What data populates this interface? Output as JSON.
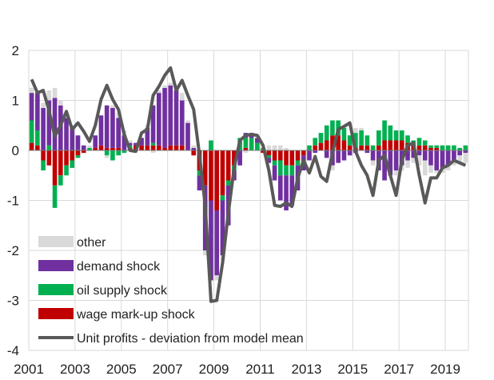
{
  "chart_data": {
    "type": "bar",
    "stacked": true,
    "ylim": [
      -4,
      2
    ],
    "yticks": [
      -4,
      -3,
      -2,
      -1,
      0,
      1,
      2
    ],
    "xticks": [
      "2001",
      "2003",
      "2005",
      "2007",
      "2009",
      "2011",
      "2013",
      "2015",
      "2017",
      "2019"
    ],
    "x_start_year": 2001,
    "quarters": 76,
    "grid": true,
    "legend_position": "bottom-left",
    "series": [
      {
        "name": "other",
        "kind": "bar",
        "color": "#d9d9d9",
        "values": [
          0.1,
          0.05,
          0.1,
          0.2,
          0.2,
          0.1,
          0.05,
          0.0,
          0.0,
          0.0,
          0.05,
          0.0,
          0.0,
          -0.05,
          0.05,
          0.1,
          0.1,
          0.05,
          0.0,
          0.0,
          0.05,
          -0.05,
          0.05,
          0.05,
          0.05,
          0.1,
          0.15,
          0.05,
          0.05,
          0.0,
          -0.1,
          0.0,
          -0.1,
          -0.1,
          0.0,
          0.0,
          0.0,
          -0.05,
          0.0,
          0.0,
          0.0,
          0.1,
          0.1,
          0.1,
          0.05,
          0.0,
          0.0,
          0.0,
          0.0,
          0.0,
          0.0,
          0.0,
          -0.1,
          0.0,
          0.0,
          0.0,
          0.1,
          0.05,
          0.0,
          -0.1,
          0.0,
          0.0,
          0.0,
          -0.1,
          -0.1,
          -0.15,
          -0.1,
          -0.2,
          -0.3,
          -0.15,
          -0.05,
          -0.1,
          -0.1,
          -0.1,
          -0.15,
          -0.2
        ]
      },
      {
        "name": "demand shock",
        "kind": "bar",
        "color": "#7030a0",
        "values": [
          0.55,
          0.75,
          0.85,
          0.9,
          1.05,
          0.9,
          0.65,
          0.45,
          0.3,
          0.1,
          0.0,
          0.25,
          0.6,
          0.85,
          0.8,
          0.6,
          0.3,
          0.05,
          0.05,
          0.15,
          0.35,
          0.75,
          1.05,
          1.2,
          1.2,
          1.1,
          0.9,
          0.55,
          0.05,
          -0.3,
          -1.3,
          -1.6,
          -1.3,
          -1.1,
          -0.8,
          -0.2,
          -0.3,
          0.1,
          0.1,
          0.1,
          0.0,
          -0.1,
          -0.3,
          -0.5,
          -0.7,
          -0.6,
          -0.5,
          -0.3,
          -0.2,
          -0.05,
          0.0,
          -0.15,
          -0.3,
          -0.25,
          -0.2,
          -0.1,
          -0.05,
          0.0,
          -0.05,
          -0.2,
          -0.4,
          -0.6,
          -0.5,
          -0.4,
          -0.3,
          -0.2,
          -0.15,
          -0.1,
          -0.2,
          -0.3,
          -0.4,
          -0.35,
          -0.3,
          -0.2,
          -0.1,
          -0.05
        ]
      },
      {
        "name": "oil supply shock",
        "kind": "bar",
        "color": "#00b050",
        "values": [
          0.45,
          0.3,
          -0.2,
          0.1,
          -0.45,
          -0.2,
          -0.2,
          -0.15,
          -0.05,
          0.0,
          0.05,
          0.0,
          0.0,
          -0.1,
          -0.2,
          -0.1,
          -0.05,
          0.05,
          0.0,
          0.0,
          0.0,
          0.05,
          0.0,
          0.0,
          0.0,
          0.0,
          0.0,
          0.0,
          0.0,
          -0.1,
          0.0,
          0.2,
          0.0,
          -0.1,
          -0.1,
          -0.1,
          0.25,
          0.2,
          0.25,
          0.15,
          0.05,
          -0.05,
          -0.1,
          -0.3,
          -0.2,
          -0.2,
          -0.1,
          0.0,
          0.1,
          0.15,
          0.2,
          0.3,
          0.3,
          0.3,
          0.25,
          0.2,
          0.3,
          0.3,
          0.2,
          0.1,
          0.3,
          0.4,
          0.3,
          0.2,
          0.2,
          0.15,
          0.1,
          0.15,
          0.1,
          0.05,
          0.05,
          0.1,
          0.1,
          0.1,
          0.05,
          0.1
        ]
      },
      {
        "name": "wage mark-up shock",
        "kind": "bar",
        "color": "#c00000",
        "values": [
          0.15,
          0.1,
          -0.2,
          -0.3,
          -0.7,
          -0.5,
          -0.3,
          -0.2,
          -0.1,
          -0.05,
          0.0,
          0.05,
          0.1,
          0.05,
          0.05,
          0.05,
          0.0,
          0.05,
          0.1,
          0.1,
          0.1,
          0.1,
          0.1,
          0.05,
          0.1,
          0.1,
          0.1,
          0.0,
          -0.1,
          -0.4,
          -0.7,
          -1.0,
          -1.2,
          -0.9,
          -0.6,
          -0.3,
          0.0,
          0.05,
          0.0,
          0.0,
          -0.05,
          -0.1,
          -0.2,
          -0.2,
          -0.3,
          -0.3,
          -0.2,
          -0.1,
          0.0,
          0.1,
          0.15,
          0.2,
          0.3,
          0.3,
          0.2,
          0.1,
          0.05,
          0.1,
          0.1,
          0.0,
          0.1,
          0.2,
          0.2,
          0.2,
          0.2,
          0.15,
          0.1,
          0.1,
          0.1,
          0.05,
          0.05,
          0.0,
          0.0,
          0.0,
          0.0,
          0.0
        ]
      },
      {
        "name": "Unit profits - deviation from model mean",
        "kind": "line",
        "color": "#595959",
        "values": [
          1.42,
          1.15,
          1.2,
          0.8,
          0.28,
          0.5,
          0.78,
          0.42,
          0.55,
          0.38,
          0.18,
          0.5,
          1.02,
          1.3,
          1.02,
          0.82,
          0.32,
          0.0,
          -0.02,
          0.35,
          0.42,
          1.1,
          1.28,
          1.5,
          1.65,
          1.2,
          1.4,
          1.1,
          0.82,
          -0.08,
          -1.1,
          -3.02,
          -3.0,
          -2.25,
          -1.25,
          -0.35,
          0.2,
          0.3,
          0.32,
          0.3,
          0.1,
          -0.4,
          -1.1,
          -1.12,
          -1.05,
          -1.12,
          -0.55,
          -0.2,
          -0.45,
          -0.12,
          -0.52,
          -0.62,
          -0.05,
          0.42,
          0.48,
          0.55,
          -0.02,
          -0.3,
          -0.5,
          -0.9,
          -0.2,
          -0.1,
          -0.5,
          -0.9,
          -0.2,
          0.1,
          0.15,
          -0.5,
          -1.05,
          -0.55,
          -0.55,
          -0.35,
          -0.3,
          -0.2,
          -0.25,
          -0.3
        ]
      }
    ]
  }
}
